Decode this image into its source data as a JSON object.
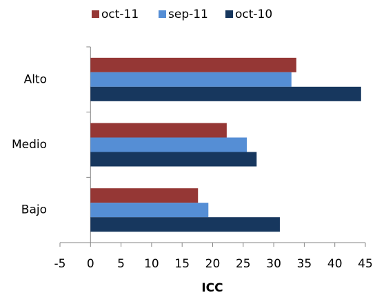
{
  "chart_data": {
    "type": "hbar",
    "x_label": "ICC",
    "categories": [
      "Alto",
      "Medio",
      "Bajo"
    ],
    "series": [
      {
        "name": "oct-11",
        "color": "#953735",
        "values": [
          33.7,
          22.3,
          17.6
        ]
      },
      {
        "name": "sep-11",
        "color": "#558ed5",
        "values": [
          32.9,
          25.6,
          19.3
        ]
      },
      {
        "name": "oct-10",
        "color": "#17375e",
        "values": [
          44.3,
          27.2,
          31.0
        ]
      }
    ],
    "xlim": [
      -5,
      45
    ],
    "xticks": [
      -5,
      0,
      5,
      10,
      15,
      20,
      25,
      30,
      35,
      40,
      45
    ],
    "legend": "top"
  }
}
